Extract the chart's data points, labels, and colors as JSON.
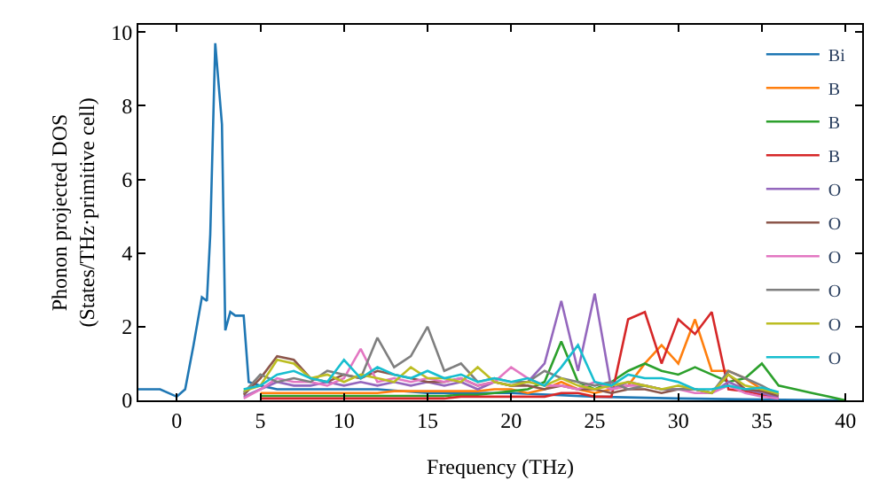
{
  "chart_data": {
    "type": "line",
    "xlabel": "Frequency (THz)",
    "ylabel": "Phonon projected DOS\n(States/THz·primitive cell)",
    "xlim": [
      -2.3,
      41
    ],
    "ylim": [
      0,
      10.2
    ],
    "xticks": [
      0,
      5,
      10,
      15,
      20,
      25,
      30,
      35,
      40
    ],
    "yticks": [
      0,
      2,
      4,
      6,
      8,
      10
    ],
    "grid": false,
    "legend": "top right",
    "marker": "none",
    "line_style": "solid",
    "x": [
      4,
      5,
      6,
      7,
      8,
      9,
      10,
      11,
      12,
      13,
      14,
      15,
      16,
      17,
      18,
      19,
      20,
      21,
      22,
      23,
      24,
      25,
      26,
      27,
      28,
      29,
      30,
      31,
      32,
      33,
      34,
      35,
      36,
      37,
      38,
      39,
      40
    ],
    "series": [
      {
        "name": "Bi",
        "color": "#1f77b4",
        "x": [
          -2.3,
          -1,
          0,
          0.5,
          1,
          1.5,
          1.8,
          2,
          2.3,
          2.7,
          2.9,
          3.2,
          3.5,
          4,
          4.3,
          5,
          6,
          8,
          10,
          12,
          15,
          20,
          25,
          30,
          35,
          40
        ],
        "values": [
          0.3,
          0.3,
          0.1,
          0.3,
          1.5,
          2.8,
          2.7,
          4.5,
          9.7,
          7.5,
          1.9,
          2.4,
          2.3,
          2.3,
          0.5,
          0.4,
          0.3,
          0.3,
          0.3,
          0.3,
          0.2,
          0.2,
          0.1,
          0.05,
          0.02,
          0
        ]
      },
      {
        "name": "B",
        "color": "#ff7f0e",
        "values": [
          null,
          0.2,
          0.2,
          0.2,
          0.2,
          0.2,
          0.2,
          0.2,
          0.2,
          0.25,
          0.25,
          0.25,
          0.25,
          0.25,
          0.25,
          0.3,
          0.3,
          0.2,
          0.3,
          0.5,
          0.3,
          0.2,
          0.3,
          0.4,
          1.0,
          1.5,
          1.0,
          2.2,
          0.8,
          0.8,
          0.6,
          0.3,
          0.15,
          null,
          null,
          null,
          null
        ]
      },
      {
        "name": "B",
        "color": "#2ca02c",
        "values": [
          null,
          0.12,
          0.12,
          0.12,
          0.12,
          0.12,
          0.12,
          0.12,
          0.12,
          0.12,
          0.12,
          0.12,
          0.12,
          0.15,
          0.15,
          0.2,
          0.25,
          0.3,
          0.5,
          1.6,
          0.5,
          0.3,
          0.5,
          0.8,
          1.0,
          0.8,
          0.7,
          0.9,
          0.7,
          0.5,
          0.6,
          1.0,
          0.4,
          0.3,
          0.2,
          0.1,
          0
        ]
      },
      {
        "name": "B",
        "color": "#d62728",
        "values": [
          null,
          0.05,
          0.05,
          0.05,
          0.05,
          0.05,
          0.05,
          0.05,
          0.05,
          0.05,
          0.05,
          0.05,
          0.05,
          0.1,
          0.1,
          0.1,
          0.1,
          0.1,
          0.1,
          0.2,
          0.2,
          0.1,
          0.1,
          2.2,
          2.4,
          1.0,
          2.2,
          1.8,
          2.4,
          0.3,
          0.25,
          0.15,
          0.05,
          null,
          null,
          null,
          null
        ]
      },
      {
        "name": "O",
        "color": "#9467bd",
        "values": [
          0.1,
          0.3,
          0.5,
          0.4,
          0.4,
          0.5,
          0.4,
          0.5,
          0.4,
          0.5,
          0.4,
          0.5,
          0.4,
          0.5,
          0.3,
          0.5,
          0.4,
          0.5,
          1.0,
          2.7,
          0.8,
          2.9,
          0.3,
          0.5,
          0.4,
          0.3,
          0.3,
          0.3,
          0.2,
          0.5,
          0.3,
          0.2,
          0.08,
          null,
          null,
          null,
          null
        ]
      },
      {
        "name": "O",
        "color": "#8c564b",
        "values": [
          0.15,
          0.6,
          1.2,
          1.1,
          0.6,
          0.5,
          0.7,
          0.6,
          0.8,
          0.7,
          0.6,
          0.5,
          0.5,
          0.6,
          0.4,
          0.5,
          0.4,
          0.4,
          0.3,
          0.4,
          0.3,
          0.3,
          0.2,
          0.3,
          0.3,
          0.2,
          0.3,
          0.3,
          0.2,
          0.7,
          0.3,
          0.25,
          0.12,
          null,
          null,
          null,
          null
        ]
      },
      {
        "name": "O",
        "color": "#e377c2",
        "values": [
          0.05,
          0.3,
          0.6,
          0.5,
          0.5,
          0.4,
          0.6,
          1.4,
          0.5,
          0.6,
          0.5,
          0.6,
          0.5,
          0.6,
          0.4,
          0.5,
          0.9,
          0.6,
          0.4,
          0.4,
          0.3,
          0.5,
          0.3,
          0.4,
          0.4,
          0.3,
          0.3,
          0.2,
          0.2,
          0.4,
          0.2,
          0.1,
          0.05,
          null,
          null,
          null,
          null
        ]
      },
      {
        "name": "O",
        "color": "#7f7f7f",
        "values": [
          0.2,
          0.7,
          0.5,
          0.6,
          0.5,
          0.8,
          0.7,
          0.6,
          1.7,
          0.9,
          1.2,
          2.0,
          0.8,
          1.0,
          0.5,
          0.6,
          0.5,
          0.5,
          0.8,
          0.6,
          0.5,
          0.4,
          0.5,
          0.3,
          0.4,
          0.3,
          0.3,
          0.3,
          0.2,
          0.8,
          0.6,
          0.4,
          0.15,
          null,
          null,
          null,
          null
        ]
      },
      {
        "name": "O",
        "color": "#bcbd22",
        "values": [
          0.25,
          0.4,
          1.1,
          1.0,
          0.6,
          0.7,
          0.5,
          0.7,
          0.6,
          0.5,
          0.9,
          0.6,
          0.6,
          0.5,
          0.9,
          0.5,
          0.4,
          0.5,
          0.4,
          0.6,
          0.4,
          0.3,
          0.4,
          0.5,
          0.4,
          0.3,
          0.4,
          0.3,
          0.2,
          0.7,
          0.4,
          0.3,
          0.18,
          null,
          null,
          null,
          null
        ]
      },
      {
        "name": "O",
        "color": "#17becf",
        "values": [
          0.3,
          0.4,
          0.7,
          0.8,
          0.6,
          0.5,
          1.1,
          0.6,
          0.9,
          0.7,
          0.6,
          0.8,
          0.6,
          0.7,
          0.5,
          0.6,
          0.5,
          0.6,
          0.4,
          0.9,
          1.5,
          0.5,
          0.4,
          0.7,
          0.6,
          0.6,
          0.5,
          0.3,
          0.3,
          0.4,
          0.3,
          0.35,
          0.22,
          null,
          null,
          null,
          null
        ]
      }
    ]
  }
}
